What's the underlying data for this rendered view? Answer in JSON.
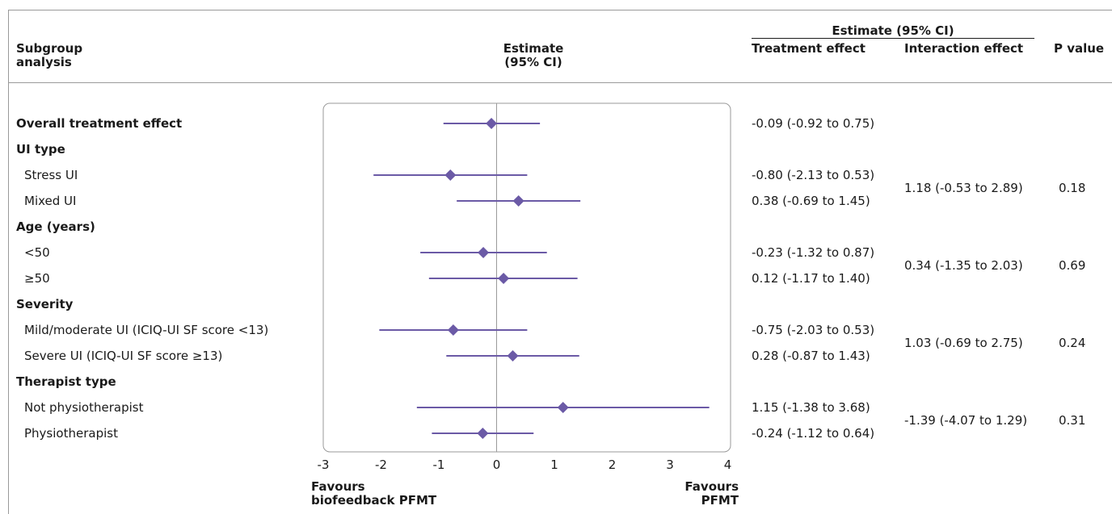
{
  "header": {
    "subgroup_analysis": "Subgroup\nanalysis",
    "estimate_center": "Estimate\n(95% CI)",
    "estimate_group": "Estimate (95% CI)",
    "treatment_effect": "Treatment effect",
    "interaction_effect": "Interaction effect",
    "p_value": "P value"
  },
  "rows": [
    {
      "label": "Overall treatment effect",
      "bold": true,
      "estimate": -0.09,
      "lower": -0.92,
      "upper": 0.75,
      "ci_text": "-0.09 (-0.92 to 0.75)"
    },
    {
      "label": "UI type",
      "bold": true
    },
    {
      "label": "Stress UI",
      "bold": false,
      "estimate": -0.8,
      "lower": -2.13,
      "upper": 0.53,
      "ci_text": "-0.80 (-2.13 to 0.53)"
    },
    {
      "label": "Mixed UI",
      "bold": false,
      "estimate": 0.38,
      "lower": -0.69,
      "upper": 1.45,
      "ci_text": "0.38 (-0.69 to 1.45)"
    },
    {
      "label": "Age (years)",
      "bold": true
    },
    {
      "label": "<50",
      "bold": false,
      "estimate": -0.23,
      "lower": -1.32,
      "upper": 0.87,
      "ci_text": "-0.23 (-1.32 to 0.87)"
    },
    {
      "label": "≥50",
      "bold": false,
      "estimate": 0.12,
      "lower": -1.17,
      "upper": 1.4,
      "ci_text": "0.12 (-1.17 to 1.40)"
    },
    {
      "label": "Severity",
      "bold": true
    },
    {
      "label": "Mild/moderate UI (ICIQ-UI SF score <13)",
      "bold": false,
      "estimate": -0.75,
      "lower": -2.03,
      "upper": 0.53,
      "ci_text": "-0.75 (-2.03 to 0.53)"
    },
    {
      "label": "Severe UI (ICIQ-UI SF score ≥13)",
      "bold": false,
      "estimate": 0.28,
      "lower": -0.87,
      "upper": 1.43,
      "ci_text": "0.28 (-0.87 to 1.43)"
    },
    {
      "label": "Therapist type",
      "bold": true
    },
    {
      "label": "Not physiotherapist",
      "bold": false,
      "estimate": 1.15,
      "lower": -1.38,
      "upper": 3.68,
      "ci_text": "1.15 (-1.38 to 3.68)"
    },
    {
      "label": "Physiotherapist",
      "bold": false,
      "estimate": -0.24,
      "lower": -1.12,
      "upper": 0.64,
      "ci_text": "-0.24 (-1.12 to 0.64)"
    }
  ],
  "interactions": [
    {
      "rows": [
        2,
        3
      ],
      "interaction": "1.18 (-0.53 to 2.89)",
      "p": "0.18"
    },
    {
      "rows": [
        5,
        6
      ],
      "interaction": "0.34 (-1.35 to 2.03)",
      "p": "0.69"
    },
    {
      "rows": [
        8,
        9
      ],
      "interaction": "1.03 (-0.69 to 2.75)",
      "p": "0.24"
    },
    {
      "rows": [
        11,
        12
      ],
      "interaction": "-1.39 (-4.07 to 1.29)",
      "p": "0.31"
    }
  ],
  "chart_data": {
    "type": "forest",
    "xlim": [
      -3,
      4
    ],
    "xticks": [
      -3,
      -2,
      -1,
      0,
      1,
      2,
      3,
      4
    ],
    "reference_line": 0,
    "marker_color": "#6b5aa6",
    "favours_left": "Favours\nbiofeedback PFMT",
    "favours_right": "Favours\nPFMT",
    "series": [
      {
        "category": "Overall treatment effect",
        "estimate": -0.09,
        "lower": -0.92,
        "upper": 0.75
      },
      {
        "category": "Stress UI",
        "estimate": -0.8,
        "lower": -2.13,
        "upper": 0.53
      },
      {
        "category": "Mixed UI",
        "estimate": 0.38,
        "lower": -0.69,
        "upper": 1.45
      },
      {
        "category": "<50",
        "estimate": -0.23,
        "lower": -1.32,
        "upper": 0.87
      },
      {
        "category": "≥50",
        "estimate": 0.12,
        "lower": -1.17,
        "upper": 1.4
      },
      {
        "category": "Mild/moderate UI (ICIQ-UI SF score <13)",
        "estimate": -0.75,
        "lower": -2.03,
        "upper": 0.53
      },
      {
        "category": "Severe UI (ICIQ-UI SF score ≥13)",
        "estimate": 0.28,
        "lower": -0.87,
        "upper": 1.43
      },
      {
        "category": "Not physiotherapist",
        "estimate": 1.15,
        "lower": -1.38,
        "upper": 3.68
      },
      {
        "category": "Physiotherapist",
        "estimate": -0.24,
        "lower": -1.12,
        "upper": 0.64
      }
    ]
  }
}
